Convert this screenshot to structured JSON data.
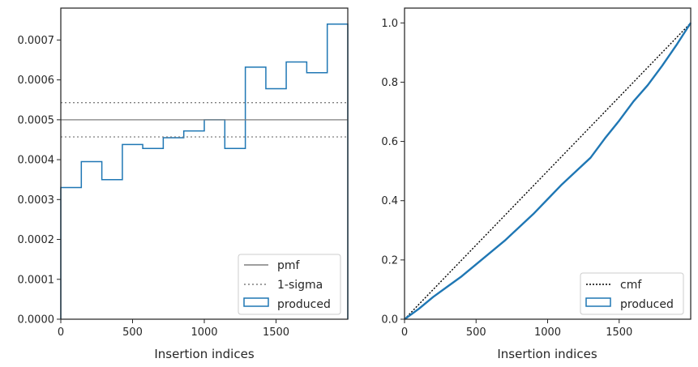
{
  "chart_data": [
    {
      "type": "histogram",
      "xlabel": "Insertion indices",
      "ylabel": "",
      "xlim": [
        0,
        2000
      ],
      "ylim": [
        0,
        0.00078
      ],
      "xticks": [
        0,
        500,
        1000,
        1500
      ],
      "xtick_labels": [
        "0",
        "500",
        "1000",
        "1500"
      ],
      "yticks": [
        0,
        0.0001,
        0.0002,
        0.0003,
        0.0004,
        0.0005,
        0.0006,
        0.0007
      ],
      "ytick_labels": [
        "0.0000",
        "0.0001",
        "0.0002",
        "0.0003",
        "0.0004",
        "0.0005",
        "0.0006",
        "0.0007"
      ],
      "bin_edges": [
        0,
        143,
        286,
        429,
        571,
        714,
        857,
        1000,
        1143,
        1286,
        1429,
        1571,
        1714,
        1857,
        2000
      ],
      "values": [
        0.00033,
        0.000395,
        0.00035,
        0.000438,
        0.000428,
        0.000455,
        0.000472,
        0.0005,
        0.000428,
        0.000632,
        0.000578,
        0.000645,
        0.000618,
        0.00074
      ],
      "reference_lines": [
        {
          "name": "pmf",
          "y": 0.0005,
          "style": "solid",
          "color": "#7f7f7f"
        },
        {
          "name": "1-sigma",
          "y": 0.000543,
          "style": "dotted",
          "color": "#7f7f7f"
        },
        {
          "name": "1-sigma",
          "y": 0.000457,
          "style": "dotted",
          "color": "#7f7f7f"
        }
      ],
      "series": [
        {
          "name": "produced",
          "color": "#1f77b4"
        }
      ],
      "legend": {
        "position": "bottom-right",
        "entries": [
          "pmf",
          "1-sigma",
          "produced"
        ]
      }
    },
    {
      "type": "line",
      "xlabel": "Insertion indices",
      "ylabel": "",
      "xlim": [
        0,
        2000
      ],
      "ylim": [
        0,
        1.05
      ],
      "xticks": [
        0,
        500,
        1000,
        1500
      ],
      "xtick_labels": [
        "0",
        "500",
        "1000",
        "1500"
      ],
      "yticks": [
        0,
        0.2,
        0.4,
        0.6,
        0.8,
        1.0
      ],
      "ytick_labels": [
        "0.0",
        "0.2",
        "0.4",
        "0.6",
        "0.8",
        "1.0"
      ],
      "reference_line": {
        "name": "cmf",
        "x": [
          0,
          2000
        ],
        "y": [
          0,
          1.0
        ],
        "style": "dotted",
        "color": "#000000"
      },
      "series": [
        {
          "name": "produced",
          "color": "#1f77b4",
          "x": [
            0,
            100,
            200,
            300,
            400,
            500,
            600,
            700,
            800,
            900,
            1000,
            1100,
            1200,
            1300,
            1400,
            1500,
            1600,
            1700,
            1800,
            1900,
            2000
          ],
          "y": [
            0,
            0.035,
            0.075,
            0.11,
            0.145,
            0.185,
            0.225,
            0.265,
            0.31,
            0.355,
            0.405,
            0.455,
            0.5,
            0.545,
            0.61,
            0.67,
            0.735,
            0.79,
            0.855,
            0.925,
            1.0
          ]
        }
      ],
      "legend": {
        "position": "bottom-right",
        "entries": [
          "cmf",
          "produced"
        ]
      }
    }
  ]
}
